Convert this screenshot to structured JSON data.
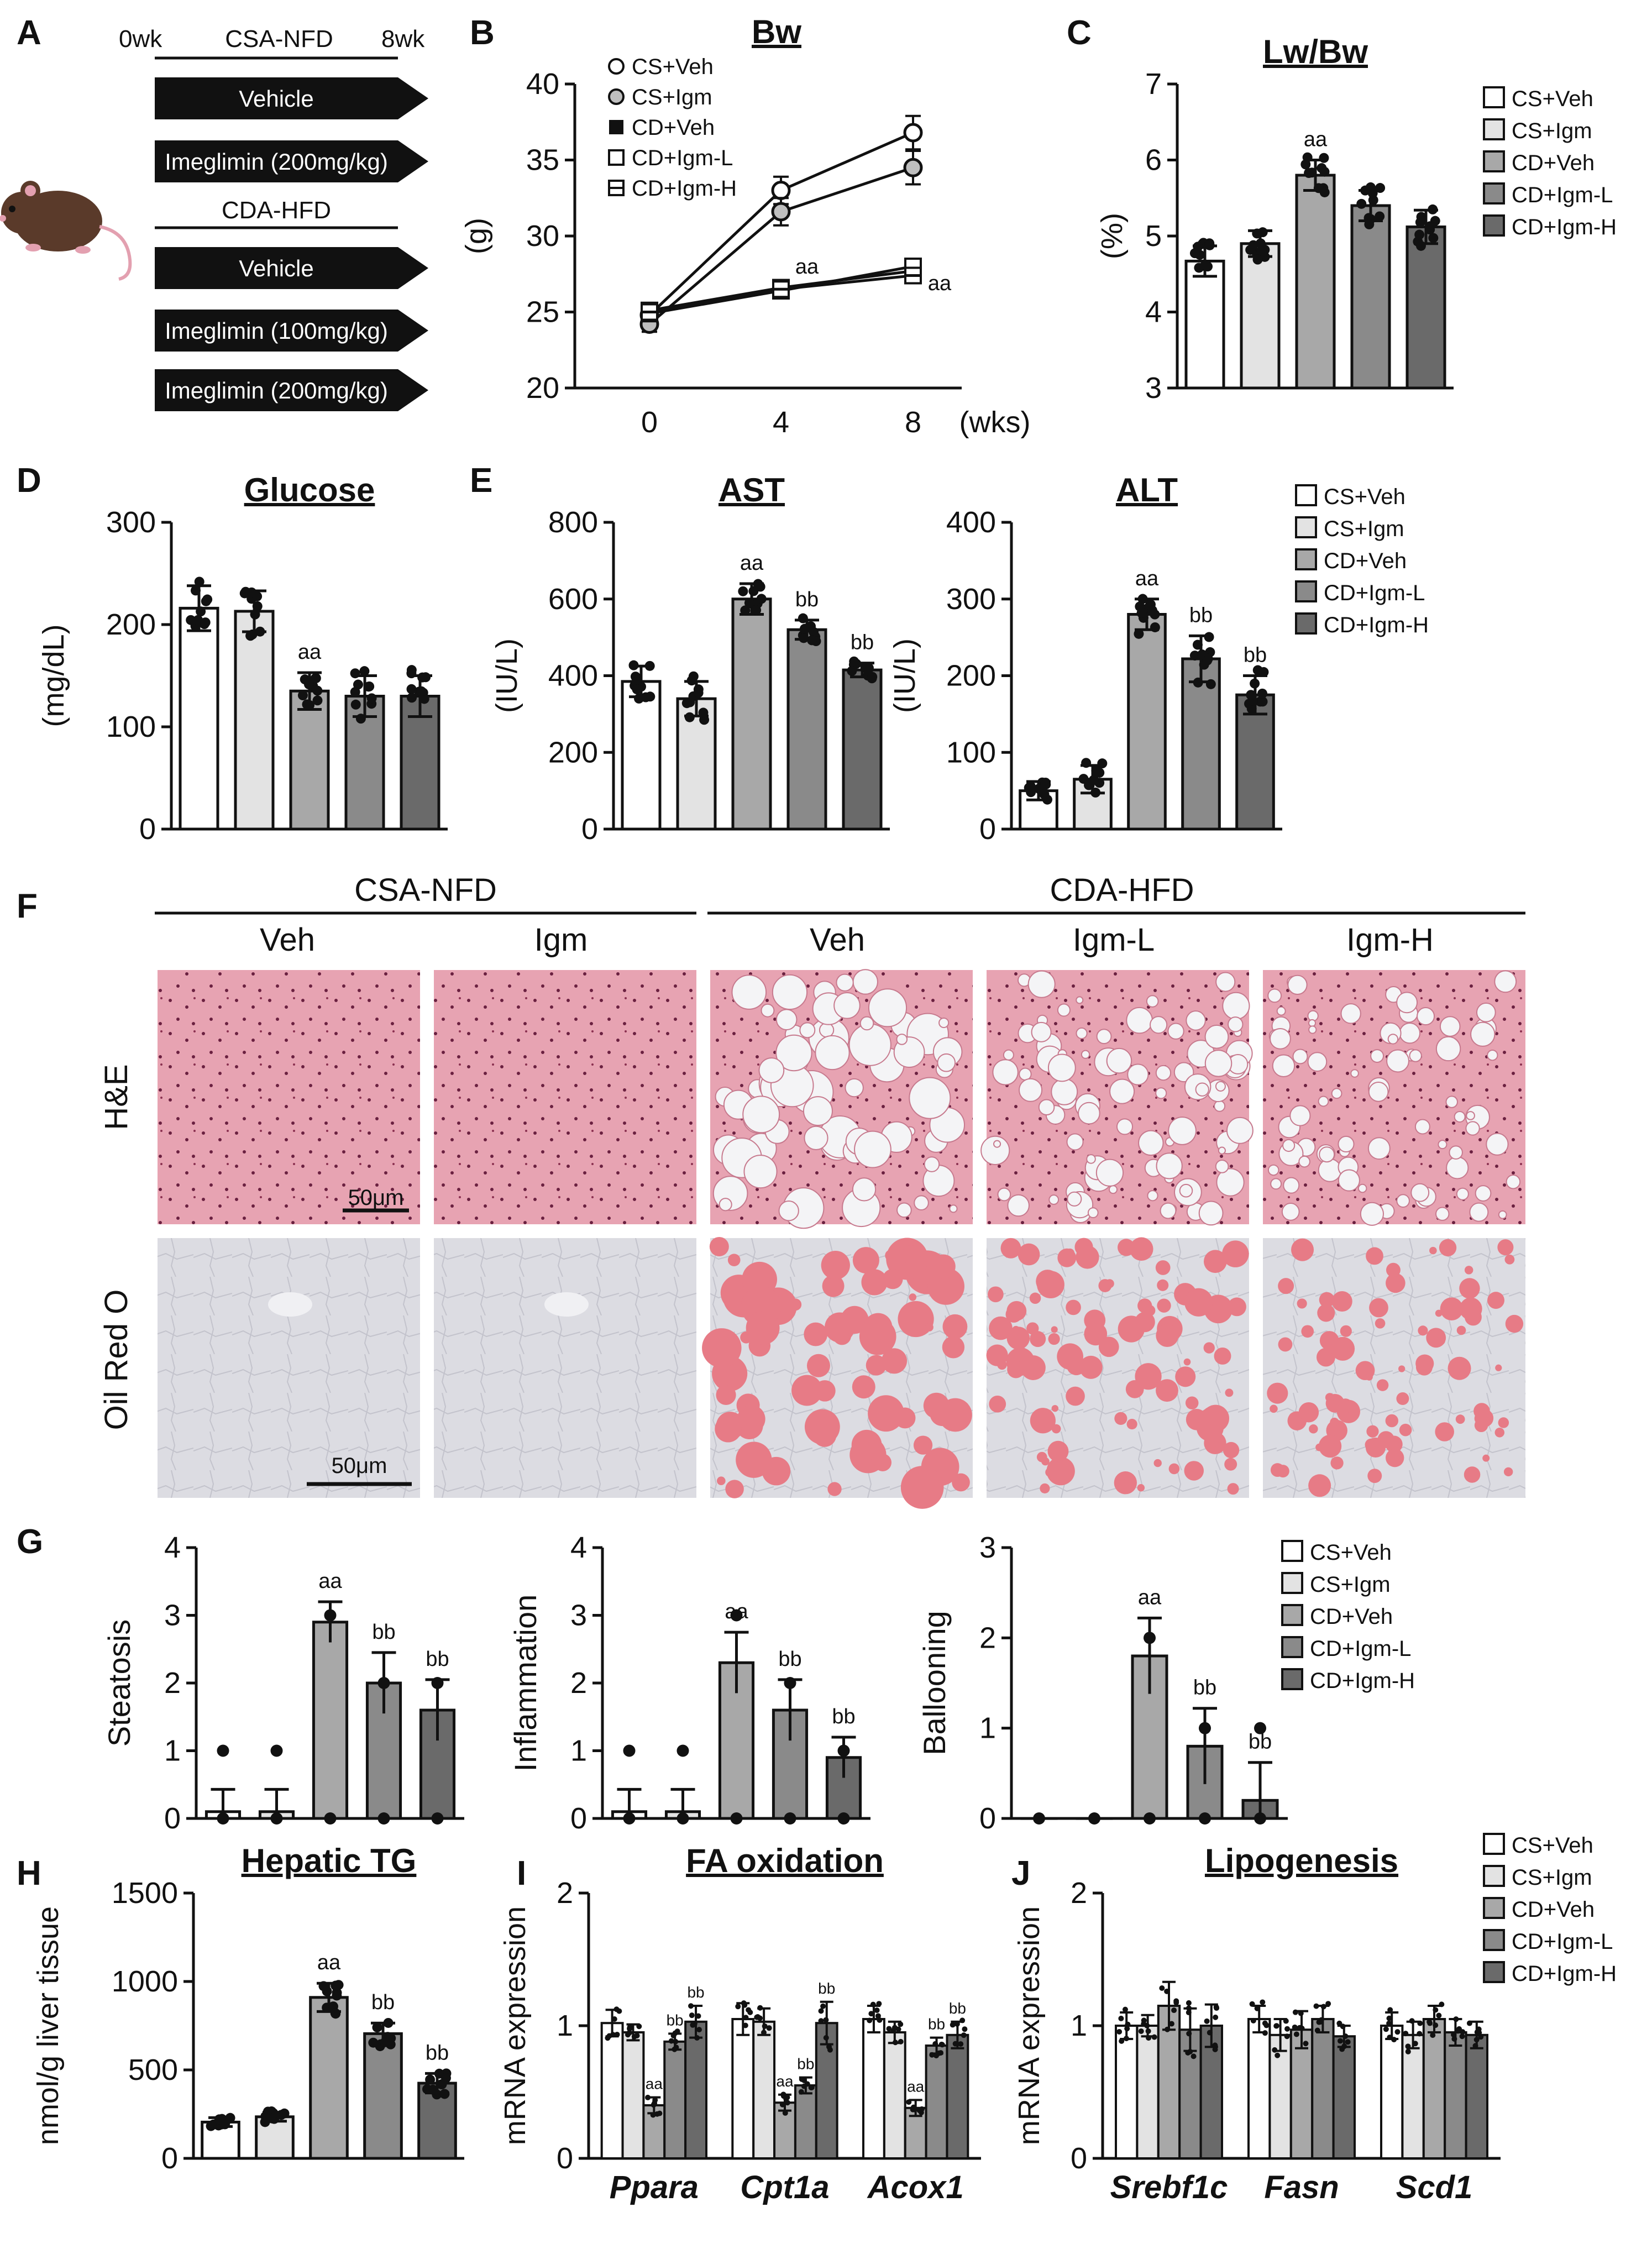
{
  "labels": {
    "A": "A",
    "B": "B",
    "C": "C",
    "D": "D",
    "E": "E",
    "F": "F",
    "G": "G",
    "H": "H",
    "I": "I",
    "J": "J"
  },
  "panel_a": {
    "t0": "0wk",
    "t1": "8wk",
    "diet1": "CSA-NFD",
    "diet2": "CDA-HFD",
    "arrows": [
      "Vehicle",
      "Imeglimin (200mg/kg)",
      "Vehicle",
      "Imeglimin (100mg/kg)",
      "Imeglimin (200mg/kg)"
    ]
  },
  "legend5": [
    "CS+Veh",
    "CS+Igm",
    "CD+Veh",
    "CD+Igm-L",
    "CD+Igm-H"
  ],
  "colors": {
    "cs_veh": "#ffffff",
    "cs_igm": "#e3e3e3",
    "cd_veh": "#a8a8a8",
    "cd_igm_l": "#8a8a8a",
    "cd_igm_h": "#6a6a6a",
    "axis": "#111111",
    "he_stain": "#d9869a",
    "oro_bg": "#d9d9df",
    "oro_lipid": "#e77b86"
  },
  "panel_f": {
    "group1": "CSA-NFD",
    "group2": "CDA-HFD",
    "cols": [
      "Veh",
      "Igm",
      "Veh",
      "Igm-L",
      "Igm-H"
    ],
    "rows": [
      "H&E",
      "Oil Red O"
    ],
    "scale_bar": "50μm"
  },
  "chart_data": [
    {
      "id": "B",
      "type": "line",
      "title": "Bw",
      "ylabel": "(g)",
      "xlabel_unit": "(wks)",
      "x": [
        0,
        4,
        8
      ],
      "ylim": [
        20,
        40
      ],
      "yticks": [
        20,
        25,
        30,
        35,
        40
      ],
      "series": [
        {
          "name": "CS+Veh",
          "values": [
            24.8,
            33.0,
            36.8
          ],
          "err": [
            0.5,
            0.9,
            1.1
          ]
        },
        {
          "name": "CS+Igm",
          "values": [
            24.2,
            31.6,
            34.5
          ],
          "err": [
            0.5,
            0.9,
            1.1
          ]
        },
        {
          "name": "CD+Veh",
          "values": [
            25.1,
            26.6,
            27.7
          ],
          "err": [
            0.4,
            0.4,
            0.4
          ]
        },
        {
          "name": "CD+Igm-L",
          "values": [
            24.9,
            26.4,
            28.0
          ],
          "err": [
            0.4,
            0.4,
            0.4
          ]
        },
        {
          "name": "CD+Igm-H",
          "values": [
            25.0,
            26.5,
            27.4
          ],
          "err": [
            0.4,
            0.4,
            0.4
          ]
        }
      ],
      "annotations": [
        "aa",
        "aa"
      ]
    },
    {
      "id": "C",
      "type": "bar",
      "title": "Lw/Bw",
      "ylabel": "(%)",
      "ylim": [
        3,
        7
      ],
      "yticks": [
        3,
        4,
        5,
        6,
        7
      ],
      "categories": [
        "CS+Veh",
        "CS+Igm",
        "CD+Veh",
        "CD+Igm-L",
        "CD+Igm-H"
      ],
      "values": [
        4.67,
        4.9,
        5.8,
        5.4,
        5.12
      ],
      "err": [
        0.2,
        0.17,
        0.2,
        0.2,
        0.22
      ],
      "sig": [
        "",
        "",
        "aa",
        "",
        ""
      ]
    },
    {
      "id": "D",
      "type": "bar",
      "title": "Glucose",
      "ylabel": "(mg/dL)",
      "ylim": [
        0,
        300
      ],
      "yticks": [
        0,
        100,
        200,
        300
      ],
      "categories": [
        "CS+Veh",
        "CS+Igm",
        "CD+Veh",
        "CD+Igm-L",
        "CD+Igm-H"
      ],
      "values": [
        216,
        213,
        135,
        130,
        130
      ],
      "err": [
        22,
        20,
        18,
        20,
        20
      ],
      "sig": [
        "",
        "",
        "aa",
        "",
        ""
      ]
    },
    {
      "id": "E1",
      "type": "bar",
      "title": "AST",
      "ylabel": "(IU/L)",
      "ylim": [
        0,
        800
      ],
      "yticks": [
        0,
        200,
        400,
        600,
        800
      ],
      "categories": [
        "CS+Veh",
        "CS+Igm",
        "CD+Veh",
        "CD+Igm-L",
        "CD+Igm-H"
      ],
      "values": [
        385,
        340,
        600,
        520,
        415
      ],
      "err": [
        40,
        45,
        40,
        25,
        18
      ],
      "sig": [
        "",
        "",
        "aa",
        "bb",
        "bb"
      ]
    },
    {
      "id": "E2",
      "type": "bar",
      "title": "ALT",
      "ylabel": "(IU/L)",
      "ylim": [
        0,
        400
      ],
      "yticks": [
        0,
        100,
        200,
        300,
        400
      ],
      "categories": [
        "CS+Veh",
        "CS+Igm",
        "CD+Veh",
        "CD+Igm-L",
        "CD+Igm-H"
      ],
      "values": [
        50,
        65,
        280,
        222,
        175
      ],
      "err": [
        12,
        18,
        20,
        30,
        25
      ],
      "sig": [
        "",
        "",
        "aa",
        "bb",
        "bb"
      ]
    },
    {
      "id": "G1",
      "type": "bar",
      "title": "",
      "ylabel": "Steatosis",
      "ylim": [
        0,
        4
      ],
      "yticks": [
        0,
        1,
        2,
        3,
        4
      ],
      "categories": [
        "CS+Veh",
        "CS+Igm",
        "CD+Veh",
        "CD+Igm-L",
        "CD+Igm-H"
      ],
      "values": [
        0.1,
        0.1,
        2.9,
        2.0,
        1.6
      ],
      "err": [
        0.33,
        0.33,
        0.3,
        0.45,
        0.45
      ],
      "sig": [
        "",
        "",
        "aa",
        "bb",
        "bb"
      ]
    },
    {
      "id": "G2",
      "type": "bar",
      "title": "",
      "ylabel": "Inflammation",
      "ylim": [
        0,
        4
      ],
      "yticks": [
        0,
        1,
        2,
        3,
        4
      ],
      "categories": [
        "CS+Veh",
        "CS+Igm",
        "CD+Veh",
        "CD+Igm-L",
        "CD+Igm-H"
      ],
      "values": [
        0.1,
        0.1,
        2.3,
        1.6,
        0.9
      ],
      "err": [
        0.33,
        0.33,
        0.45,
        0.45,
        0.3
      ],
      "sig": [
        "",
        "",
        "aa",
        "bb",
        "bb"
      ]
    },
    {
      "id": "G3",
      "type": "bar",
      "title": "",
      "ylabel": "Ballooning",
      "ylim": [
        0,
        3
      ],
      "yticks": [
        0,
        1,
        2,
        3
      ],
      "categories": [
        "CS+Veh",
        "CS+Igm",
        "CD+Veh",
        "CD+Igm-L",
        "CD+Igm-H"
      ],
      "values": [
        0,
        0,
        1.8,
        0.8,
        0.2
      ],
      "err": [
        0,
        0,
        0.42,
        0.42,
        0.42
      ],
      "sig": [
        "",
        "",
        "aa",
        "bb",
        "bb"
      ]
    },
    {
      "id": "H",
      "type": "bar",
      "title": "Hepatic TG",
      "ylabel": "nmol/g liver tissue",
      "ylim": [
        0,
        1500
      ],
      "yticks": [
        0,
        500,
        1000,
        1500
      ],
      "categories": [
        "CS+Veh",
        "CS+Igm",
        "CD+Veh",
        "CD+Igm-L",
        "CD+Igm-H"
      ],
      "values": [
        205,
        235,
        910,
        705,
        425
      ],
      "err": [
        25,
        25,
        80,
        60,
        55
      ],
      "sig": [
        "",
        "",
        "aa",
        "bb",
        "bb"
      ]
    },
    {
      "id": "I",
      "type": "bar",
      "title": "FA oxidation",
      "ylabel": "mRNA expression",
      "ylim": [
        0,
        2
      ],
      "yticks": [
        0,
        1,
        2
      ],
      "categories": [
        "Ppara",
        "Cpt1a",
        "Acox1"
      ],
      "series_names": [
        "CS+Veh",
        "CS+Igm",
        "CD+Veh",
        "CD+Igm-L",
        "CD+Igm-H"
      ],
      "values": [
        [
          1.02,
          0.95,
          0.4,
          0.88,
          1.03
        ],
        [
          1.05,
          1.03,
          0.42,
          0.55,
          1.02
        ],
        [
          1.05,
          0.95,
          0.38,
          0.85,
          0.93
        ]
      ],
      "err": [
        [
          0.1,
          0.06,
          0.06,
          0.06,
          0.12
        ],
        [
          0.12,
          0.1,
          0.06,
          0.06,
          0.16
        ],
        [
          0.1,
          0.08,
          0.06,
          0.06,
          0.1
        ]
      ],
      "sig": [
        [
          "",
          "",
          "aa",
          "bb",
          "bb"
        ],
        [
          "",
          "",
          "aa",
          "bb",
          "bb"
        ],
        [
          "",
          "",
          "aa",
          "bb",
          "bb"
        ]
      ]
    },
    {
      "id": "J",
      "type": "bar",
      "title": "Lipogenesis",
      "ylabel": "mRNA expression",
      "ylim": [
        0,
        2
      ],
      "yticks": [
        0,
        1,
        2
      ],
      "categories": [
        "Srebf1c",
        "Fasn",
        "Scd1"
      ],
      "series_names": [
        "CS+Veh",
        "CS+Igm",
        "CD+Veh",
        "CD+Igm-L",
        "CD+Igm-H"
      ],
      "values": [
        [
          1.0,
          1.0,
          1.15,
          0.97,
          1.0
        ],
        [
          1.05,
          0.93,
          0.97,
          1.05,
          0.92
        ],
        [
          1.0,
          0.93,
          1.05,
          0.95,
          0.93
        ]
      ],
      "err": [
        [
          0.1,
          0.08,
          0.18,
          0.16,
          0.16
        ],
        [
          0.1,
          0.12,
          0.14,
          0.1,
          0.08
        ],
        [
          0.1,
          0.1,
          0.1,
          0.1,
          0.1
        ]
      ],
      "sig": [
        [
          "",
          "",
          "",
          "",
          ""
        ],
        [
          "",
          "",
          "",
          "",
          ""
        ],
        [
          "",
          "",
          "",
          "",
          ""
        ]
      ]
    }
  ]
}
